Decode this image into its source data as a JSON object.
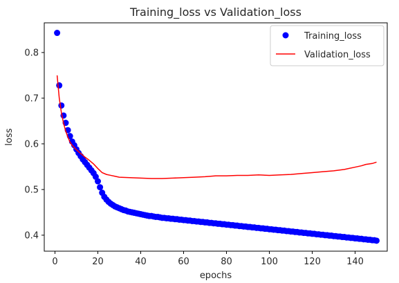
{
  "chart_data": {
    "type": "line",
    "title": "Training_loss vs Validation_loss",
    "xlabel": "epochs",
    "ylabel": "loss",
    "xlim": [
      -5,
      155
    ],
    "ylim": [
      0.365,
      0.865
    ],
    "xticks": [
      0,
      20,
      40,
      60,
      80,
      100,
      120,
      140
    ],
    "yticks": [
      0.4,
      0.5,
      0.6,
      0.7,
      0.8
    ],
    "ytick_labels": [
      "0.4",
      "0.5",
      "0.6",
      "0.7",
      "0.8"
    ],
    "grid": false,
    "legend_position": "top-right",
    "series": [
      {
        "name": "Training_loss",
        "style": "markers",
        "color": "#0000ff",
        "x": [
          1,
          2,
          3,
          4,
          5,
          6,
          7,
          8,
          9,
          10,
          11,
          12,
          13,
          14,
          15,
          16,
          17,
          18,
          19,
          20,
          21,
          22,
          23,
          24,
          25,
          26,
          27,
          28,
          29,
          30,
          31,
          32,
          33,
          34,
          35,
          36,
          37,
          38,
          39,
          40,
          41,
          42,
          43,
          44,
          45,
          46,
          47,
          48,
          49,
          50,
          51,
          52,
          53,
          54,
          55,
          56,
          57,
          58,
          59,
          60,
          61,
          62,
          63,
          64,
          65,
          66,
          67,
          68,
          69,
          70,
          71,
          72,
          73,
          74,
          75,
          76,
          77,
          78,
          79,
          80,
          81,
          82,
          83,
          84,
          85,
          86,
          87,
          88,
          89,
          90,
          91,
          92,
          93,
          94,
          95,
          96,
          97,
          98,
          99,
          100,
          101,
          102,
          103,
          104,
          105,
          106,
          107,
          108,
          109,
          110,
          111,
          112,
          113,
          114,
          115,
          116,
          117,
          118,
          119,
          120,
          121,
          122,
          123,
          124,
          125,
          126,
          127,
          128,
          129,
          130,
          131,
          132,
          133,
          134,
          135,
          136,
          137,
          138,
          139,
          140,
          141,
          142,
          143,
          144,
          145,
          146,
          147,
          148,
          149,
          150
        ],
        "y": [
          0.843,
          0.728,
          0.684,
          0.662,
          0.646,
          0.63,
          0.617,
          0.605,
          0.597,
          0.588,
          0.58,
          0.573,
          0.566,
          0.56,
          0.554,
          0.548,
          0.542,
          0.536,
          0.528,
          0.518,
          0.505,
          0.493,
          0.484,
          0.478,
          0.473,
          0.469,
          0.466,
          0.463,
          0.461,
          0.459,
          0.457,
          0.455,
          0.454,
          0.452,
          0.451,
          0.45,
          0.449,
          0.448,
          0.447,
          0.446,
          0.445,
          0.444,
          0.443,
          0.442,
          0.442,
          0.441,
          0.44,
          0.44,
          0.439,
          0.438,
          0.438,
          0.437,
          0.437,
          0.436,
          0.436,
          0.435,
          0.435,
          0.434,
          0.434,
          0.433,
          0.433,
          0.432,
          0.432,
          0.431,
          0.431,
          0.43,
          0.43,
          0.429,
          0.429,
          0.428,
          0.428,
          0.427,
          0.427,
          0.426,
          0.426,
          0.425,
          0.425,
          0.424,
          0.424,
          0.423,
          0.423,
          0.422,
          0.422,
          0.421,
          0.421,
          0.42,
          0.42,
          0.419,
          0.419,
          0.418,
          0.418,
          0.417,
          0.417,
          0.416,
          0.416,
          0.415,
          0.415,
          0.414,
          0.414,
          0.413,
          0.413,
          0.412,
          0.412,
          0.411,
          0.411,
          0.41,
          0.41,
          0.409,
          0.409,
          0.408,
          0.408,
          0.407,
          0.407,
          0.406,
          0.406,
          0.405,
          0.405,
          0.404,
          0.404,
          0.403,
          0.403,
          0.402,
          0.402,
          0.401,
          0.401,
          0.4,
          0.4,
          0.399,
          0.399,
          0.398,
          0.398,
          0.397,
          0.397,
          0.396,
          0.396,
          0.395,
          0.395,
          0.394,
          0.394,
          0.393,
          0.393,
          0.392,
          0.392,
          0.391,
          0.391,
          0.39,
          0.39,
          0.389,
          0.389,
          0.388
        ]
      },
      {
        "name": "Validation_loss",
        "style": "line",
        "color": "#ff0000",
        "x": [
          1,
          2,
          3,
          4,
          5,
          6,
          7,
          8,
          10,
          12,
          14,
          16,
          18,
          20,
          22,
          24,
          26,
          28,
          30,
          35,
          40,
          45,
          50,
          55,
          60,
          65,
          70,
          75,
          80,
          85,
          90,
          95,
          100,
          105,
          110,
          115,
          120,
          125,
          130,
          135,
          140,
          143,
          145,
          148,
          150
        ],
        "y": [
          0.75,
          0.7,
          0.668,
          0.645,
          0.628,
          0.615,
          0.604,
          0.597,
          0.587,
          0.579,
          0.571,
          0.564,
          0.556,
          0.546,
          0.537,
          0.533,
          0.531,
          0.529,
          0.527,
          0.526,
          0.525,
          0.524,
          0.524,
          0.525,
          0.526,
          0.527,
          0.528,
          0.53,
          0.53,
          0.531,
          0.531,
          0.532,
          0.531,
          0.532,
          0.533,
          0.535,
          0.537,
          0.539,
          0.541,
          0.544,
          0.549,
          0.552,
          0.555,
          0.557,
          0.56
        ]
      }
    ]
  }
}
